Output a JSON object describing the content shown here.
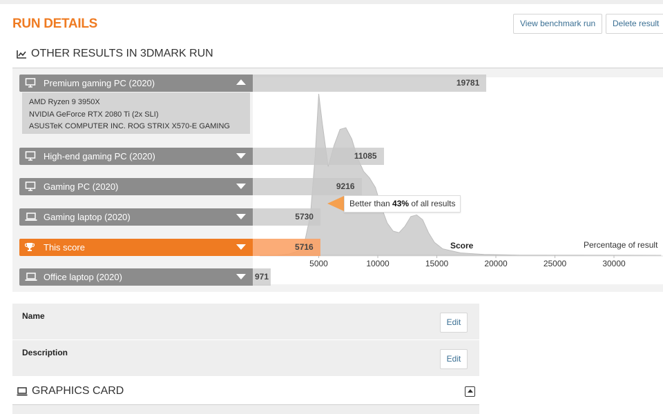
{
  "header": {
    "title": "RUN DETAILS",
    "view_benchmark_label": "View benchmark run",
    "delete_result_label": "Delete result"
  },
  "other_results": {
    "heading": "OTHER RESULTS IN 3DMARK RUN",
    "rows": [
      {
        "label": "Premium gaming PC (2020)",
        "score": "19781",
        "expanded": true,
        "icon": "desktop-icon"
      },
      {
        "label": "High-end gaming PC (2020)",
        "score": "11085",
        "icon": "desktop-icon"
      },
      {
        "label": "Gaming PC (2020)",
        "score": "9216",
        "icon": "desktop-icon"
      },
      {
        "label": "Gaming laptop (2020)",
        "score": "5730",
        "icon": "laptop-icon"
      },
      {
        "label": "This score",
        "score": "5716",
        "active": true,
        "icon": "trophy-icon"
      },
      {
        "label": "Office laptop (2020)",
        "score": "971",
        "icon": "laptop-icon"
      }
    ],
    "premium_details": [
      "AMD Ryzen 9 3950X",
      "NVIDIA GeForce RTX 2080 Ti (2x SLI)",
      "ASUSTeK COMPUTER INC. ROG STRIX X570-E GAMING"
    ],
    "tooltip": {
      "prefix": "Better than ",
      "value": "43%",
      "suffix": " of all results"
    }
  },
  "chart_data": {
    "type": "area",
    "xlabel": "Score",
    "ylabel": "Percentage of result",
    "x_ticks": [
      "5000",
      "10000",
      "15000",
      "20000",
      "25000",
      "30000"
    ],
    "xlim": [
      0,
      34000
    ],
    "x": [
      0,
      1500,
      2500,
      3200,
      3800,
      4300,
      4700,
      5000,
      5300,
      5800,
      6300,
      6800,
      7300,
      7800,
      8300,
      8800,
      9300,
      9800,
      10300,
      10800,
      11300,
      11800,
      12300,
      12800,
      13300,
      13800,
      14300,
      14800,
      15500,
      17000,
      19000,
      22000,
      34000
    ],
    "values": [
      0,
      0.1,
      0.8,
      2.5,
      8,
      25,
      62,
      100,
      82,
      55,
      68,
      78,
      79,
      72,
      60,
      52,
      48,
      42,
      30,
      20,
      15,
      14,
      18,
      24,
      25,
      22,
      14,
      8,
      4,
      1.5,
      0.5,
      0.1,
      0
    ],
    "marked_score": 5716,
    "percentile": "43%"
  },
  "fields": [
    {
      "label": "Name",
      "edit_label": "Edit"
    },
    {
      "label": "Description",
      "edit_label": "Edit"
    }
  ],
  "graphics_card": {
    "heading": "GRAPHICS CARD"
  },
  "colors": {
    "accent": "#ef7b22",
    "row_grey": "#8c8c8c",
    "link_blue": "#3a6f93"
  }
}
